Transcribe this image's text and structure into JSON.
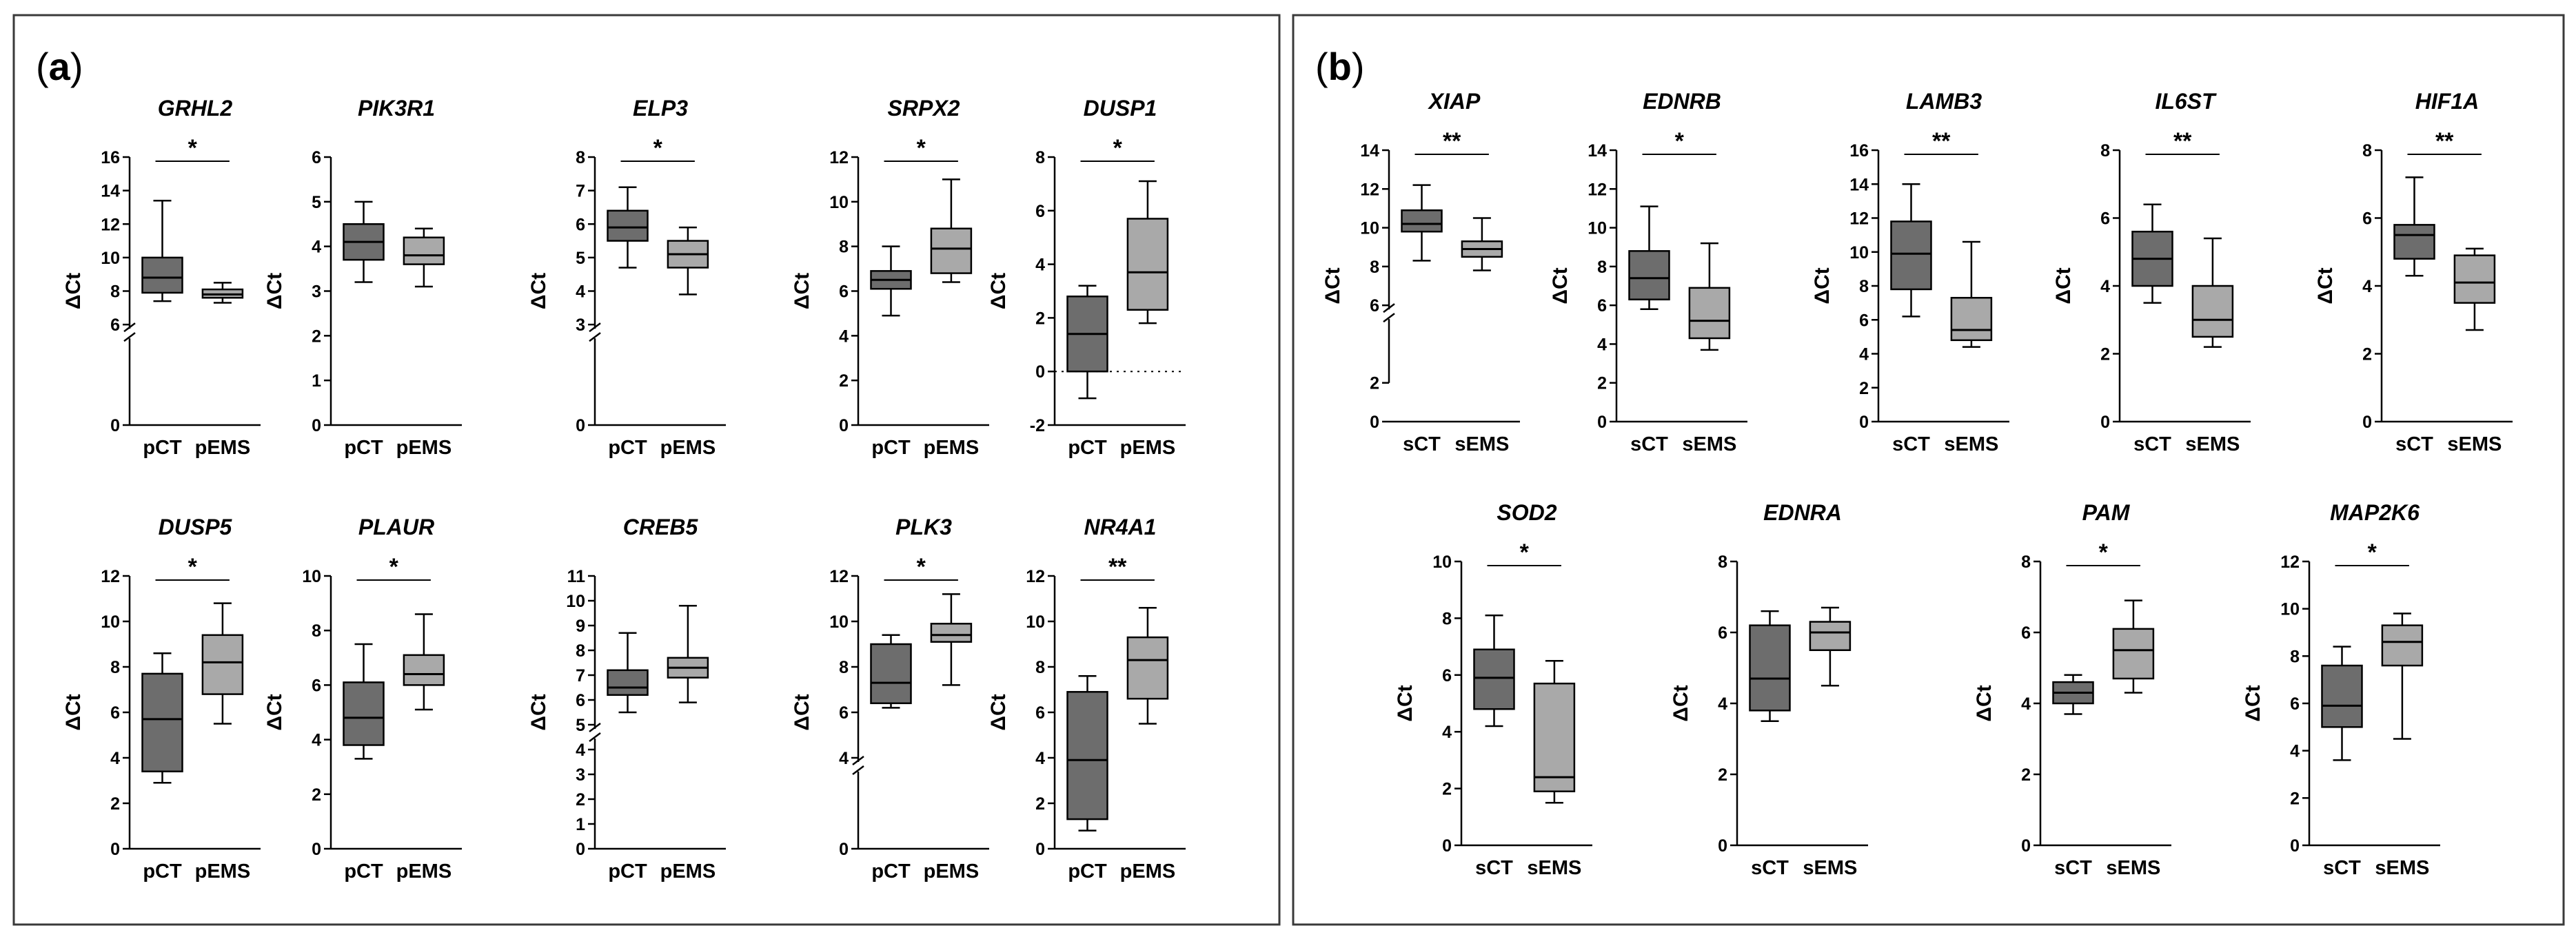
{
  "panels": [
    {
      "label": "a"
    },
    {
      "label": "b"
    }
  ],
  "colors": {
    "control": "#6d6d6d",
    "treated": "#a9a9a9",
    "line": "#000000",
    "frame": "#3a3a3a"
  },
  "chart_data": [
    {
      "type": "box",
      "panel": "a",
      "title": "GRHL2",
      "ylabel": "ΔCt",
      "ylim": [
        0,
        16
      ],
      "yticks": [
        0,
        6,
        8,
        10,
        12,
        14,
        16
      ],
      "axis_break": [
        0,
        6
      ],
      "categories": [
        "pCT",
        "pEMS"
      ],
      "series": [
        {
          "name": "pCT",
          "min": 7.4,
          "q1": 7.9,
          "median": 8.8,
          "q3": 10.0,
          "max": 13.4
        },
        {
          "name": "pEMS",
          "min": 7.3,
          "q1": 7.6,
          "median": 7.8,
          "q3": 8.1,
          "max": 8.5
        }
      ],
      "significance": "*"
    },
    {
      "type": "box",
      "panel": "a",
      "title": "PIK3R1",
      "ylabel": "ΔCt",
      "ylim": [
        0,
        6
      ],
      "yticks": [
        0,
        1,
        2,
        3,
        4,
        5,
        6
      ],
      "categories": [
        "pCT",
        "pEMS"
      ],
      "series": [
        {
          "name": "pCT",
          "min": 3.2,
          "q1": 3.7,
          "median": 4.1,
          "q3": 4.5,
          "max": 5.0
        },
        {
          "name": "pEMS",
          "min": 3.1,
          "q1": 3.6,
          "median": 3.8,
          "q3": 4.2,
          "max": 4.4
        }
      ],
      "significance": ""
    },
    {
      "type": "box",
      "panel": "a",
      "title": "ELP3",
      "ylabel": "ΔCt",
      "ylim": [
        0,
        8
      ],
      "yticks": [
        0,
        3,
        4,
        5,
        6,
        7,
        8
      ],
      "axis_break": [
        0,
        3
      ],
      "categories": [
        "pCT",
        "pEMS"
      ],
      "series": [
        {
          "name": "pCT",
          "min": 4.7,
          "q1": 5.5,
          "median": 5.9,
          "q3": 6.4,
          "max": 7.1
        },
        {
          "name": "pEMS",
          "min": 3.9,
          "q1": 4.7,
          "median": 5.1,
          "q3": 5.5,
          "max": 5.9
        }
      ],
      "significance": "*"
    },
    {
      "type": "box",
      "panel": "a",
      "title": "SRPX2",
      "ylabel": "ΔCt",
      "ylim": [
        0,
        12
      ],
      "yticks": [
        0,
        2,
        4,
        6,
        8,
        10,
        12
      ],
      "categories": [
        "pCT",
        "pEMS"
      ],
      "series": [
        {
          "name": "pCT",
          "min": 4.9,
          "q1": 6.1,
          "median": 6.5,
          "q3": 6.9,
          "max": 8.0
        },
        {
          "name": "pEMS",
          "min": 6.4,
          "q1": 6.8,
          "median": 7.9,
          "q3": 8.8,
          "max": 11.0
        }
      ],
      "significance": "*"
    },
    {
      "type": "box",
      "panel": "a",
      "title": "DUSP1",
      "ylabel": "ΔCt",
      "ylim": [
        -2,
        8
      ],
      "yticks": [
        -2,
        0,
        2,
        4,
        6,
        8
      ],
      "zero_line": true,
      "categories": [
        "pCT",
        "pEMS"
      ],
      "series": [
        {
          "name": "pCT",
          "min": -1.0,
          "q1": 0.0,
          "median": 1.4,
          "q3": 2.8,
          "max": 3.2
        },
        {
          "name": "pEMS",
          "min": 1.8,
          "q1": 2.3,
          "median": 3.7,
          "q3": 5.7,
          "max": 7.1
        }
      ],
      "significance": "*"
    },
    {
      "type": "box",
      "panel": "a",
      "title": "DUSP5",
      "ylabel": "ΔCt",
      "ylim": [
        0,
        12
      ],
      "yticks": [
        0,
        2,
        4,
        6,
        8,
        10,
        12
      ],
      "categories": [
        "pCT",
        "pEMS"
      ],
      "series": [
        {
          "name": "pCT",
          "min": 2.9,
          "q1": 3.4,
          "median": 5.7,
          "q3": 7.7,
          "max": 8.6
        },
        {
          "name": "pEMS",
          "min": 5.5,
          "q1": 6.8,
          "median": 8.2,
          "q3": 9.4,
          "max": 10.8
        }
      ],
      "significance": "*"
    },
    {
      "type": "box",
      "panel": "a",
      "title": "PLAUR",
      "ylabel": "ΔCt",
      "ylim": [
        0,
        10
      ],
      "yticks": [
        0,
        2,
        4,
        6,
        8,
        10
      ],
      "categories": [
        "pCT",
        "pEMS"
      ],
      "series": [
        {
          "name": "pCT",
          "min": 3.3,
          "q1": 3.8,
          "median": 4.8,
          "q3": 6.1,
          "max": 7.5
        },
        {
          "name": "pEMS",
          "min": 5.1,
          "q1": 6.0,
          "median": 6.4,
          "q3": 7.1,
          "max": 8.6
        }
      ],
      "significance": "*"
    },
    {
      "type": "box",
      "panel": "a",
      "title": "CREB5",
      "ylabel": "ΔCt",
      "ylim": [
        0,
        11
      ],
      "yticks": [
        0,
        1,
        2,
        3,
        4,
        5,
        6,
        7,
        8,
        9,
        10,
        11
      ],
      "axis_break": [
        0,
        5
      ],
      "categories": [
        "pCT",
        "pEMS"
      ],
      "series": [
        {
          "name": "pCT",
          "min": 5.5,
          "q1": 6.2,
          "median": 6.5,
          "q3": 7.2,
          "max": 8.7
        },
        {
          "name": "pEMS",
          "min": 5.9,
          "q1": 6.9,
          "median": 7.3,
          "q3": 7.7,
          "max": 9.8
        }
      ],
      "significance": ""
    },
    {
      "type": "box",
      "panel": "a",
      "title": "PLK3",
      "ylabel": "ΔCt",
      "ylim": [
        0,
        12
      ],
      "yticks": [
        0,
        4,
        6,
        8,
        10,
        12
      ],
      "axis_break": [
        0,
        4
      ],
      "categories": [
        "pCT",
        "pEMS"
      ],
      "series": [
        {
          "name": "pCT",
          "min": 6.2,
          "q1": 6.4,
          "median": 7.3,
          "q3": 9.0,
          "max": 9.4
        },
        {
          "name": "pEMS",
          "min": 7.2,
          "q1": 9.1,
          "median": 9.4,
          "q3": 9.9,
          "max": 11.2
        }
      ],
      "significance": "*"
    },
    {
      "type": "box",
      "panel": "a",
      "title": "NR4A1",
      "ylabel": "ΔCt",
      "ylim": [
        0,
        12
      ],
      "yticks": [
        0,
        2,
        4,
        6,
        8,
        10,
        12
      ],
      "categories": [
        "pCT",
        "pEMS"
      ],
      "series": [
        {
          "name": "pCT",
          "min": 0.8,
          "q1": 1.3,
          "median": 3.9,
          "q3": 6.9,
          "max": 7.6
        },
        {
          "name": "pEMS",
          "min": 5.5,
          "q1": 6.6,
          "median": 8.3,
          "q3": 9.3,
          "max": 10.6
        }
      ],
      "significance": "**"
    },
    {
      "type": "box",
      "panel": "b",
      "title": "XIAP",
      "ylabel": "ΔCt",
      "ylim": [
        0,
        14
      ],
      "yticks": [
        0,
        2,
        6,
        8,
        10,
        12,
        14
      ],
      "axis_break": [
        2,
        6
      ],
      "categories": [
        "sCT",
        "sEMS"
      ],
      "series": [
        {
          "name": "sCT",
          "min": 8.3,
          "q1": 9.8,
          "median": 10.2,
          "q3": 10.9,
          "max": 12.2
        },
        {
          "name": "sEMS",
          "min": 7.8,
          "q1": 8.5,
          "median": 8.9,
          "q3": 9.3,
          "max": 10.5
        }
      ],
      "significance": "**"
    },
    {
      "type": "box",
      "panel": "b",
      "title": "EDNRB",
      "ylabel": "ΔCt",
      "ylim": [
        0,
        14
      ],
      "yticks": [
        0,
        2,
        4,
        6,
        8,
        10,
        12,
        14
      ],
      "categories": [
        "sCT",
        "sEMS"
      ],
      "series": [
        {
          "name": "sCT",
          "min": 5.8,
          "q1": 6.3,
          "median": 7.4,
          "q3": 8.8,
          "max": 11.1
        },
        {
          "name": "sEMS",
          "min": 3.7,
          "q1": 4.3,
          "median": 5.2,
          "q3": 6.9,
          "max": 9.2
        }
      ],
      "significance": "*"
    },
    {
      "type": "box",
      "panel": "b",
      "title": "LAMB3",
      "ylabel": "ΔCt",
      "ylim": [
        0,
        16
      ],
      "yticks": [
        0,
        2,
        4,
        6,
        8,
        10,
        12,
        14,
        16
      ],
      "categories": [
        "sCT",
        "sEMS"
      ],
      "series": [
        {
          "name": "sCT",
          "min": 6.2,
          "q1": 7.8,
          "median": 9.9,
          "q3": 11.8,
          "max": 14.0
        },
        {
          "name": "sEMS",
          "min": 4.4,
          "q1": 4.8,
          "median": 5.4,
          "q3": 7.3,
          "max": 10.6
        }
      ],
      "significance": "**"
    },
    {
      "type": "box",
      "panel": "b",
      "title": "IL6ST",
      "ylabel": "ΔCt",
      "ylim": [
        0,
        8
      ],
      "yticks": [
        0,
        2,
        4,
        6,
        8
      ],
      "categories": [
        "sCT",
        "sEMS"
      ],
      "series": [
        {
          "name": "sCT",
          "min": 3.5,
          "q1": 4.0,
          "median": 4.8,
          "q3": 5.6,
          "max": 6.4
        },
        {
          "name": "sEMS",
          "min": 2.2,
          "q1": 2.5,
          "median": 3.0,
          "q3": 4.0,
          "max": 5.4
        }
      ],
      "significance": "**"
    },
    {
      "type": "box",
      "panel": "b",
      "title": "HIF1A",
      "ylabel": "ΔCt",
      "ylim": [
        0,
        8
      ],
      "yticks": [
        0,
        2,
        4,
        6,
        8
      ],
      "categories": [
        "sCT",
        "sEMS"
      ],
      "series": [
        {
          "name": "sCT",
          "min": 4.3,
          "q1": 4.8,
          "median": 5.5,
          "q3": 5.8,
          "max": 7.2
        },
        {
          "name": "sEMS",
          "min": 2.7,
          "q1": 3.5,
          "median": 4.1,
          "q3": 4.9,
          "max": 5.1
        }
      ],
      "significance": "**"
    },
    {
      "type": "box",
      "panel": "b",
      "title": "SOD2",
      "ylabel": "ΔCt",
      "ylim": [
        0,
        10
      ],
      "yticks": [
        0,
        2,
        4,
        6,
        8,
        10
      ],
      "categories": [
        "sCT",
        "sEMS"
      ],
      "series": [
        {
          "name": "sCT",
          "min": 4.2,
          "q1": 4.8,
          "median": 5.9,
          "q3": 6.9,
          "max": 8.1
        },
        {
          "name": "sEMS",
          "min": 1.5,
          "q1": 1.9,
          "median": 2.4,
          "q3": 5.7,
          "max": 6.5
        }
      ],
      "significance": "*"
    },
    {
      "type": "box",
      "panel": "b",
      "title": "EDNRA",
      "ylabel": "ΔCt",
      "ylim": [
        0,
        8
      ],
      "yticks": [
        0,
        2,
        4,
        6,
        8
      ],
      "categories": [
        "sCT",
        "sEMS"
      ],
      "series": [
        {
          "name": "sCT",
          "min": 3.5,
          "q1": 3.8,
          "median": 4.7,
          "q3": 6.2,
          "max": 6.6
        },
        {
          "name": "sEMS",
          "min": 4.5,
          "q1": 5.5,
          "median": 6.0,
          "q3": 6.3,
          "max": 6.7
        }
      ],
      "significance": ""
    },
    {
      "type": "box",
      "panel": "b",
      "title": "PAM",
      "ylabel": "ΔCt",
      "ylim": [
        0,
        8
      ],
      "yticks": [
        0,
        2,
        4,
        6,
        8
      ],
      "categories": [
        "sCT",
        "sEMS"
      ],
      "series": [
        {
          "name": "sCT",
          "min": 3.7,
          "q1": 4.0,
          "median": 4.3,
          "q3": 4.6,
          "max": 4.8
        },
        {
          "name": "sEMS",
          "min": 4.3,
          "q1": 4.7,
          "median": 5.5,
          "q3": 6.1,
          "max": 6.9
        }
      ],
      "significance": "*"
    },
    {
      "type": "box",
      "panel": "b",
      "title": "MAP2K6",
      "ylabel": "ΔCt",
      "ylim": [
        0,
        12
      ],
      "yticks": [
        0,
        2,
        4,
        6,
        8,
        10,
        12
      ],
      "categories": [
        "sCT",
        "sEMS"
      ],
      "series": [
        {
          "name": "sCT",
          "min": 3.6,
          "q1": 5.0,
          "median": 5.9,
          "q3": 7.6,
          "max": 8.4
        },
        {
          "name": "sEMS",
          "min": 4.5,
          "q1": 7.6,
          "median": 8.6,
          "q3": 9.3,
          "max": 9.8
        }
      ],
      "significance": "*"
    }
  ]
}
